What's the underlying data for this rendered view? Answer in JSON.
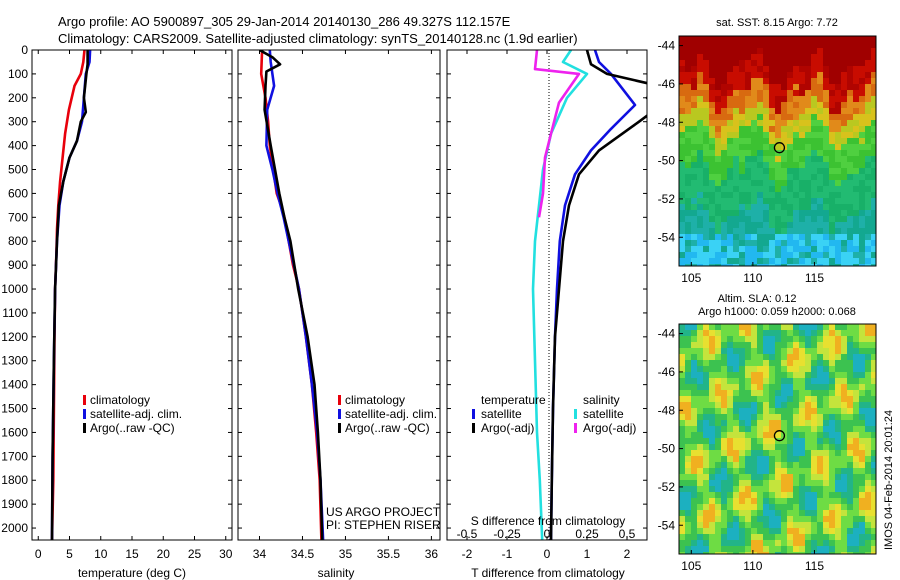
{
  "header": {
    "line1": "Argo profile: AO 5900897_305 29-Jan-2014 20140130_286 49.327S 112.157E",
    "line2": "Climatology: CARS2009. Satellite-adjusted climatology: synTS_20140128.nc (1.9d earlier)"
  },
  "colors": {
    "climatology": "#e8000b",
    "satellite": "#1010e0",
    "argo": "#000000",
    "salinity_sat": "#22e0e0",
    "salinity_argo": "#ee22ee"
  },
  "chart_data": [
    {
      "type": "line",
      "panel": "temperature",
      "xlabel": "temperature (deg C)",
      "ylabel": "",
      "xlim": [
        -1,
        31
      ],
      "ylim": [
        2050,
        0
      ],
      "xticks": [
        "0",
        "5",
        "10",
        "15",
        "20",
        "25",
        "30"
      ],
      "yticks": [
        "0",
        "100",
        "200",
        "300",
        "400",
        "500",
        "600",
        "700",
        "800",
        "900",
        "1000",
        "1100",
        "1200",
        "1300",
        "1400",
        "1500",
        "1600",
        "1700",
        "1800",
        "1900",
        "2000"
      ],
      "legend": [
        "climatology",
        "satellite-adj. clim.",
        "Argo(..raw -QC)"
      ],
      "series": [
        {
          "name": "climatology",
          "color": "#e8000b",
          "x": [
            7.4,
            7.2,
            6.8,
            5.8,
            4.9,
            4.3,
            3.9,
            3.5,
            3.2,
            3.0,
            2.9,
            2.7,
            2.6,
            2.5,
            2.4,
            2.2
          ],
          "y": [
            0,
            50,
            100,
            150,
            250,
            350,
            450,
            550,
            650,
            750,
            850,
            1000,
            1200,
            1500,
            1800,
            2050
          ]
        },
        {
          "name": "satellite-adj. clim.",
          "color": "#1010e0",
          "x": [
            8.3,
            8.2,
            7.6,
            7.3,
            7.0,
            6.2,
            5.0,
            4.0,
            3.4,
            3.0,
            2.7,
            2.5,
            2.3,
            2.2
          ],
          "y": [
            0,
            50,
            100,
            200,
            300,
            380,
            450,
            550,
            650,
            800,
            1000,
            1300,
            1700,
            2050
          ]
        },
        {
          "name": "Argo(..raw -QC)",
          "color": "#000000",
          "x": [
            7.9,
            7.9,
            7.7,
            7.3,
            7.6,
            6.8,
            6.2,
            5.0,
            4.0,
            3.3,
            3.0,
            2.7,
            2.5,
            2.3,
            2.2
          ],
          "y": [
            0,
            60,
            100,
            200,
            260,
            300,
            380,
            450,
            550,
            650,
            800,
            1000,
            1300,
            1700,
            2050
          ]
        }
      ]
    },
    {
      "type": "line",
      "panel": "salinity",
      "xlabel": "salinity",
      "ylabel": "",
      "xlim": [
        33.75,
        36.1
      ],
      "ylim": [
        2050,
        0
      ],
      "xticks": [
        "34",
        "34.5",
        "35",
        "35.5",
        "36"
      ],
      "legend": [
        "climatology",
        "satellite-adj. clim.",
        "Argo(..raw -QC)"
      ],
      "annotation": [
        "US ARGO PROJECT",
        "PI: STEPHEN RISER"
      ],
      "series": [
        {
          "name": "climatology",
          "color": "#e8000b",
          "x": [
            34.03,
            34.02,
            34.07,
            34.1,
            34.12,
            34.16,
            34.2,
            34.25,
            34.29,
            34.34,
            34.39,
            34.46,
            34.54,
            34.61,
            34.66,
            34.7,
            34.72
          ],
          "y": [
            0,
            100,
            200,
            300,
            400,
            500,
            600,
            650,
            700,
            800,
            900,
            1000,
            1200,
            1400,
            1600,
            1800,
            2050
          ]
        },
        {
          "name": "satellite-adj. clim.",
          "color": "#1010e0",
          "x": [
            34.12,
            34.13,
            34.17,
            34.09,
            34.08,
            34.15,
            34.21,
            34.28,
            34.34,
            34.4,
            34.46,
            34.54,
            34.61,
            34.67,
            34.71,
            34.74
          ],
          "y": [
            0,
            50,
            150,
            250,
            400,
            500,
            600,
            700,
            800,
            900,
            1000,
            1200,
            1400,
            1600,
            1800,
            2050
          ]
        },
        {
          "name": "Argo(..raw -QC)",
          "color": "#000000",
          "x": [
            34.0,
            34.15,
            34.24,
            34.08,
            34.07,
            34.06,
            34.13,
            34.18,
            34.23,
            34.29,
            34.36,
            34.45,
            34.56,
            34.64,
            34.68,
            34.71,
            34.73
          ],
          "y": [
            0,
            30,
            60,
            90,
            150,
            250,
            400,
            500,
            600,
            700,
            800,
            1000,
            1200,
            1400,
            1600,
            1800,
            2050
          ]
        }
      ]
    },
    {
      "type": "line",
      "panel": "difference",
      "xlabel": "T difference from climatology",
      "xlabel2": "S difference from climatology",
      "xlim": [
        -2.5,
        2.5
      ],
      "ylim": [
        2050,
        0
      ],
      "xticks": [
        "-2",
        "-1",
        "0",
        "1",
        "2"
      ],
      "xticks2": [
        "-0.5",
        "-0.25",
        "0",
        "0.25",
        "0.5"
      ],
      "legend_headers": [
        "temperature",
        "salinity"
      ],
      "legend": [
        "satellite",
        "Argo(-adj)",
        "satellite",
        "Argo(-adj)"
      ],
      "series": [
        {
          "name": "satellite",
          "group": "temperature",
          "color": "#1010e0",
          "x": [
            1.2,
            1.3,
            1.6,
            2.2,
            1.6,
            1.1,
            0.7,
            0.45,
            0.32,
            0.25,
            0.2,
            0.15,
            0.12,
            0.1
          ],
          "y": [
            0,
            50,
            100,
            230,
            330,
            420,
            520,
            650,
            800,
            1000,
            1200,
            1500,
            1800,
            2050
          ]
        },
        {
          "name": "Argo(-adj)",
          "group": "temperature",
          "color": "#000000",
          "x": [
            1.0,
            1.1,
            1.5,
            2.8,
            2.5,
            2.7,
            2.3,
            1.3,
            0.8,
            0.55,
            0.4,
            0.3,
            0.2,
            0.15,
            0.12,
            0.1
          ],
          "y": [
            0,
            60,
            100,
            150,
            200,
            250,
            300,
            420,
            520,
            650,
            800,
            1000,
            1200,
            1500,
            1800,
            2050
          ]
        },
        {
          "name": "satellite",
          "group": "salinity",
          "color": "#22e0e0",
          "x": [
            0.6,
            0.4,
            1.0,
            0.5,
            0.1,
            -0.1,
            -0.2,
            -0.3,
            -0.35,
            -0.3,
            -0.25,
            -0.18,
            -0.12
          ],
          "y": [
            0,
            50,
            100,
            200,
            350,
            500,
            650,
            800,
            1000,
            1300,
            1600,
            1800,
            2050
          ]
        },
        {
          "name": "Argo(-adj)",
          "group": "salinity",
          "color": "#ee22ee",
          "x": [
            -0.25,
            -0.3,
            0.8,
            0.3,
            0.1,
            -0.05,
            -0.1,
            -0.15,
            -0.2
          ],
          "y": [
            0,
            80,
            100,
            220,
            350,
            450,
            600,
            650,
            700
          ]
        }
      ]
    },
    {
      "type": "heatmap",
      "panel": "sst_map",
      "title": "sat. SST: 8.15 Argo: 7.72",
      "xlim": [
        104,
        120
      ],
      "ylim": [
        -55.5,
        -43.5
      ],
      "xticks": [
        "105",
        "110",
        "115"
      ],
      "yticks": [
        "-44",
        "-46",
        "-48",
        "-50",
        "-52",
        "-54"
      ],
      "marker": {
        "lon": 112.157,
        "lat": -49.327
      }
    },
    {
      "type": "heatmap",
      "panel": "sla_map",
      "title": "Altim. SLA: 0.12",
      "subtitle": "Argo h1000: 0.059 h2000: 0.068",
      "xlim": [
        104,
        120
      ],
      "ylim": [
        -55.5,
        -43.5
      ],
      "xticks": [
        "105",
        "110",
        "115"
      ],
      "yticks": [
        "-44",
        "-46",
        "-48",
        "-50",
        "-52",
        "-54"
      ],
      "marker": {
        "lon": 112.157,
        "lat": -49.327
      }
    }
  ],
  "side_label": "IMOS 04-Feb-2014 20:01:24"
}
